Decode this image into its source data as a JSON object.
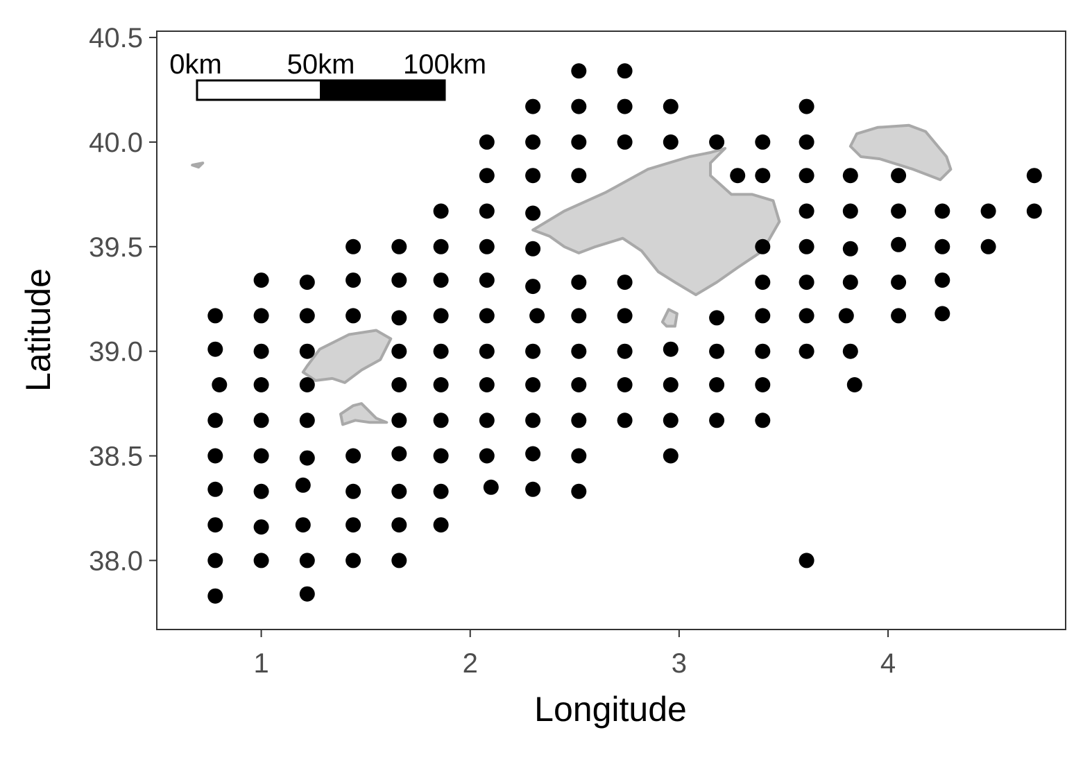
{
  "chart_data": {
    "type": "scatter",
    "xlabel": "Longitude",
    "ylabel": "Latitude",
    "xlim": [
      0.5,
      4.85
    ],
    "ylim": [
      37.67,
      40.53
    ],
    "x_ticks": [
      1,
      2,
      3,
      4
    ],
    "x_tick_labels": [
      "1",
      "2",
      "3",
      "4"
    ],
    "y_ticks": [
      38.0,
      38.5,
      39.0,
      39.5,
      40.0,
      40.5
    ],
    "y_tick_labels": [
      "38.0",
      "38.5",
      "39.0",
      "39.5",
      "40.0",
      "40.5"
    ],
    "grid": false,
    "point_color": "#000000",
    "land_fill": "#d3d3d3",
    "land_stroke": "#a9a9a9",
    "scale_bar": {
      "labels": [
        "0km",
        "50km",
        "100km"
      ],
      "position": "top-left"
    },
    "islands": [
      {
        "name": "Ibiza",
        "outline": [
          [
            1.22,
            38.93
          ],
          [
            1.28,
            39.01
          ],
          [
            1.42,
            39.08
          ],
          [
            1.55,
            39.1
          ],
          [
            1.62,
            39.06
          ],
          [
            1.57,
            38.96
          ],
          [
            1.48,
            38.91
          ],
          [
            1.4,
            38.85
          ],
          [
            1.34,
            38.87
          ],
          [
            1.26,
            38.86
          ],
          [
            1.2,
            38.9
          ]
        ]
      },
      {
        "name": "Formentera",
        "outline": [
          [
            1.38,
            38.7
          ],
          [
            1.44,
            38.74
          ],
          [
            1.48,
            38.75
          ],
          [
            1.55,
            38.68
          ],
          [
            1.6,
            38.66
          ],
          [
            1.52,
            38.66
          ],
          [
            1.45,
            38.67
          ],
          [
            1.39,
            38.65
          ]
        ]
      },
      {
        "name": "Mallorca",
        "outline": [
          [
            2.3,
            39.58
          ],
          [
            2.45,
            39.67
          ],
          [
            2.65,
            39.76
          ],
          [
            2.85,
            39.87
          ],
          [
            3.05,
            39.93
          ],
          [
            3.15,
            39.95
          ],
          [
            3.22,
            39.97
          ],
          [
            3.15,
            39.9
          ],
          [
            3.15,
            39.84
          ],
          [
            3.25,
            39.75
          ],
          [
            3.35,
            39.75
          ],
          [
            3.45,
            39.72
          ],
          [
            3.48,
            39.62
          ],
          [
            3.4,
            39.48
          ],
          [
            3.28,
            39.4
          ],
          [
            3.18,
            39.33
          ],
          [
            3.08,
            39.27
          ],
          [
            2.98,
            39.33
          ],
          [
            2.9,
            39.38
          ],
          [
            2.82,
            39.48
          ],
          [
            2.73,
            39.54
          ],
          [
            2.6,
            39.5
          ],
          [
            2.52,
            39.47
          ],
          [
            2.45,
            39.5
          ],
          [
            2.38,
            39.55
          ]
        ]
      },
      {
        "name": "Menorca",
        "outline": [
          [
            3.82,
            39.98
          ],
          [
            3.85,
            40.04
          ],
          [
            3.95,
            40.07
          ],
          [
            4.1,
            40.08
          ],
          [
            4.18,
            40.05
          ],
          [
            4.28,
            39.93
          ],
          [
            4.3,
            39.87
          ],
          [
            4.25,
            39.82
          ],
          [
            4.12,
            39.87
          ],
          [
            3.96,
            39.92
          ],
          [
            3.87,
            39.93
          ]
        ]
      },
      {
        "name": "Cabrera",
        "outline": [
          [
            2.92,
            39.14
          ],
          [
            2.95,
            39.2
          ],
          [
            2.99,
            39.18
          ],
          [
            2.98,
            39.12
          ],
          [
            2.94,
            39.12
          ]
        ]
      },
      {
        "name": "Columbretes",
        "outline": [
          [
            0.67,
            39.89
          ],
          [
            0.72,
            39.9
          ],
          [
            0.7,
            39.88
          ]
        ]
      }
    ],
    "x": [
      0.78,
      0.78,
      0.8,
      0.78,
      0.78,
      0.78,
      0.78,
      0.78,
      0.78,
      1.0,
      1.0,
      1.0,
      1.0,
      1.0,
      1.0,
      1.0,
      1.0,
      1.0,
      1.22,
      1.22,
      1.22,
      1.22,
      1.22,
      1.22,
      1.2,
      1.2,
      1.22,
      1.22,
      1.44,
      1.44,
      1.44,
      1.44,
      1.44,
      1.44,
      1.44,
      1.66,
      1.66,
      1.66,
      1.66,
      1.66,
      1.66,
      1.66,
      1.66,
      1.66,
      1.66,
      1.86,
      1.86,
      1.86,
      1.86,
      1.86,
      1.86,
      1.86,
      1.86,
      1.86,
      1.86,
      2.08,
      2.08,
      2.08,
      2.08,
      2.08,
      2.08,
      2.08,
      2.08,
      2.08,
      2.08,
      2.1,
      2.3,
      2.3,
      2.3,
      2.3,
      2.3,
      2.3,
      2.32,
      2.3,
      2.3,
      2.3,
      2.3,
      2.3,
      2.52,
      2.52,
      2.52,
      2.52,
      2.52,
      2.52,
      2.52,
      2.52,
      2.52,
      2.52,
      2.52,
      2.74,
      2.74,
      2.74,
      2.74,
      2.74,
      2.74,
      2.74,
      2.74,
      2.96,
      2.96,
      2.96,
      2.96,
      2.96,
      2.96,
      3.18,
      3.18,
      3.18,
      3.18,
      3.18,
      3.28,
      3.4,
      3.4,
      3.4,
      3.4,
      3.4,
      3.4,
      3.4,
      3.4,
      3.61,
      3.61,
      3.61,
      3.61,
      3.61,
      3.61,
      3.61,
      3.61,
      3.61,
      3.82,
      3.82,
      3.82,
      3.82,
      3.8,
      3.82,
      3.84,
      4.05,
      4.05,
      4.05,
      4.05,
      4.05,
      4.26,
      4.26,
      4.26,
      4.26,
      4.48,
      4.48,
      4.7,
      4.7
    ],
    "y": [
      39.17,
      39.01,
      38.84,
      38.67,
      38.5,
      38.34,
      38.17,
      38.0,
      37.83,
      39.34,
      39.17,
      39.0,
      38.84,
      38.67,
      38.5,
      38.33,
      38.16,
      38.0,
      39.33,
      39.17,
      39.0,
      38.84,
      38.67,
      38.49,
      38.36,
      38.17,
      38.0,
      37.84,
      39.5,
      39.34,
      39.17,
      38.5,
      38.33,
      38.17,
      38.0,
      39.5,
      39.34,
      39.16,
      39.0,
      38.84,
      38.67,
      38.51,
      38.33,
      38.17,
      38.0,
      39.67,
      39.5,
      39.34,
      39.17,
      39.0,
      38.84,
      38.67,
      38.5,
      38.33,
      38.17,
      40.0,
      39.84,
      39.67,
      39.5,
      39.34,
      39.17,
      39.0,
      38.84,
      38.67,
      38.5,
      38.35,
      40.17,
      40.0,
      39.84,
      39.66,
      39.49,
      39.31,
      39.17,
      39.0,
      38.84,
      38.67,
      38.51,
      38.34,
      40.34,
      40.17,
      40.0,
      39.84,
      39.33,
      39.17,
      39.0,
      38.84,
      38.67,
      38.5,
      38.33,
      40.34,
      40.17,
      40.0,
      39.33,
      39.17,
      39.0,
      38.84,
      38.67,
      40.17,
      40.0,
      39.01,
      38.84,
      38.67,
      38.5,
      40.0,
      39.16,
      39.0,
      38.84,
      38.67,
      39.84,
      40.0,
      39.84,
      39.5,
      39.33,
      39.17,
      39.0,
      38.84,
      38.67,
      40.17,
      40.0,
      39.84,
      39.67,
      39.5,
      39.33,
      39.17,
      39.0,
      38.0,
      39.84,
      39.67,
      39.49,
      39.33,
      39.17,
      39.0,
      38.84,
      39.84,
      39.67,
      39.51,
      39.33,
      39.17,
      39.67,
      39.5,
      39.34,
      39.18,
      39.67,
      39.5,
      39.84,
      39.67
    ]
  }
}
